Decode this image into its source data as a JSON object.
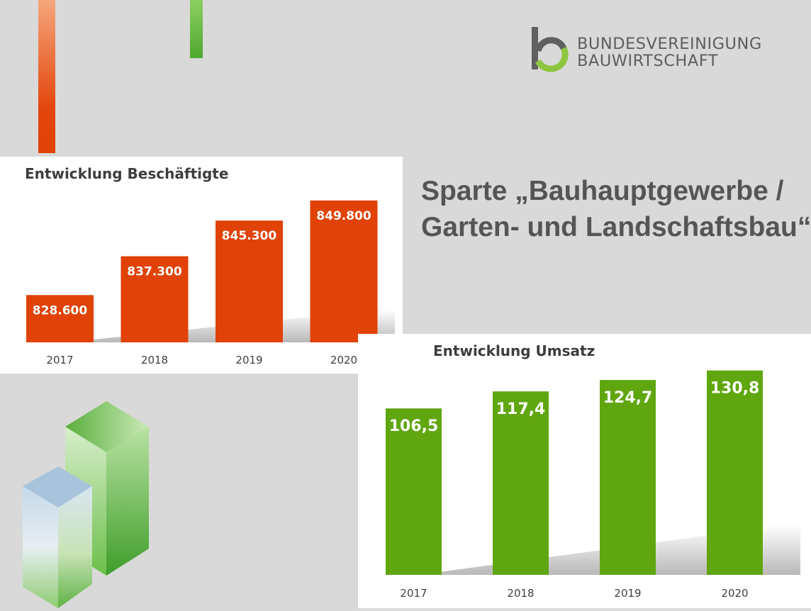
{
  "logo": {
    "line1": "BUNDESVEREINIGUNG",
    "line2": "BAUWIRTSCHAFT",
    "colors": {
      "gray": "#5f6062",
      "green": "#8dc63f"
    }
  },
  "headline": {
    "line1": "Sparte „Bauhauptgewerbe /",
    "line2": "Garten- und Landschaftsbau“"
  },
  "chart_data": [
    {
      "type": "bar",
      "title": "Entwicklung Beschäftigte",
      "categories": [
        "2017",
        "2018",
        "2019",
        "2020"
      ],
      "values": [
        828600,
        837300,
        845300,
        849800
      ],
      "value_labels": [
        "828.600",
        "837.300",
        "845.300",
        "849.800"
      ],
      "color": "#e04207",
      "ylim": [
        818000,
        852000
      ],
      "grid": false
    },
    {
      "type": "bar",
      "title": "Entwicklung Umsatz",
      "categories": [
        "2017",
        "2018",
        "2019",
        "2020"
      ],
      "values": [
        106.5,
        117.4,
        124.7,
        130.8
      ],
      "value_labels": [
        "106,5",
        "117,4",
        "124,7",
        "130,8"
      ],
      "color": "#5fa60f",
      "ylim": [
        0,
        137
      ],
      "grid": false
    }
  ]
}
